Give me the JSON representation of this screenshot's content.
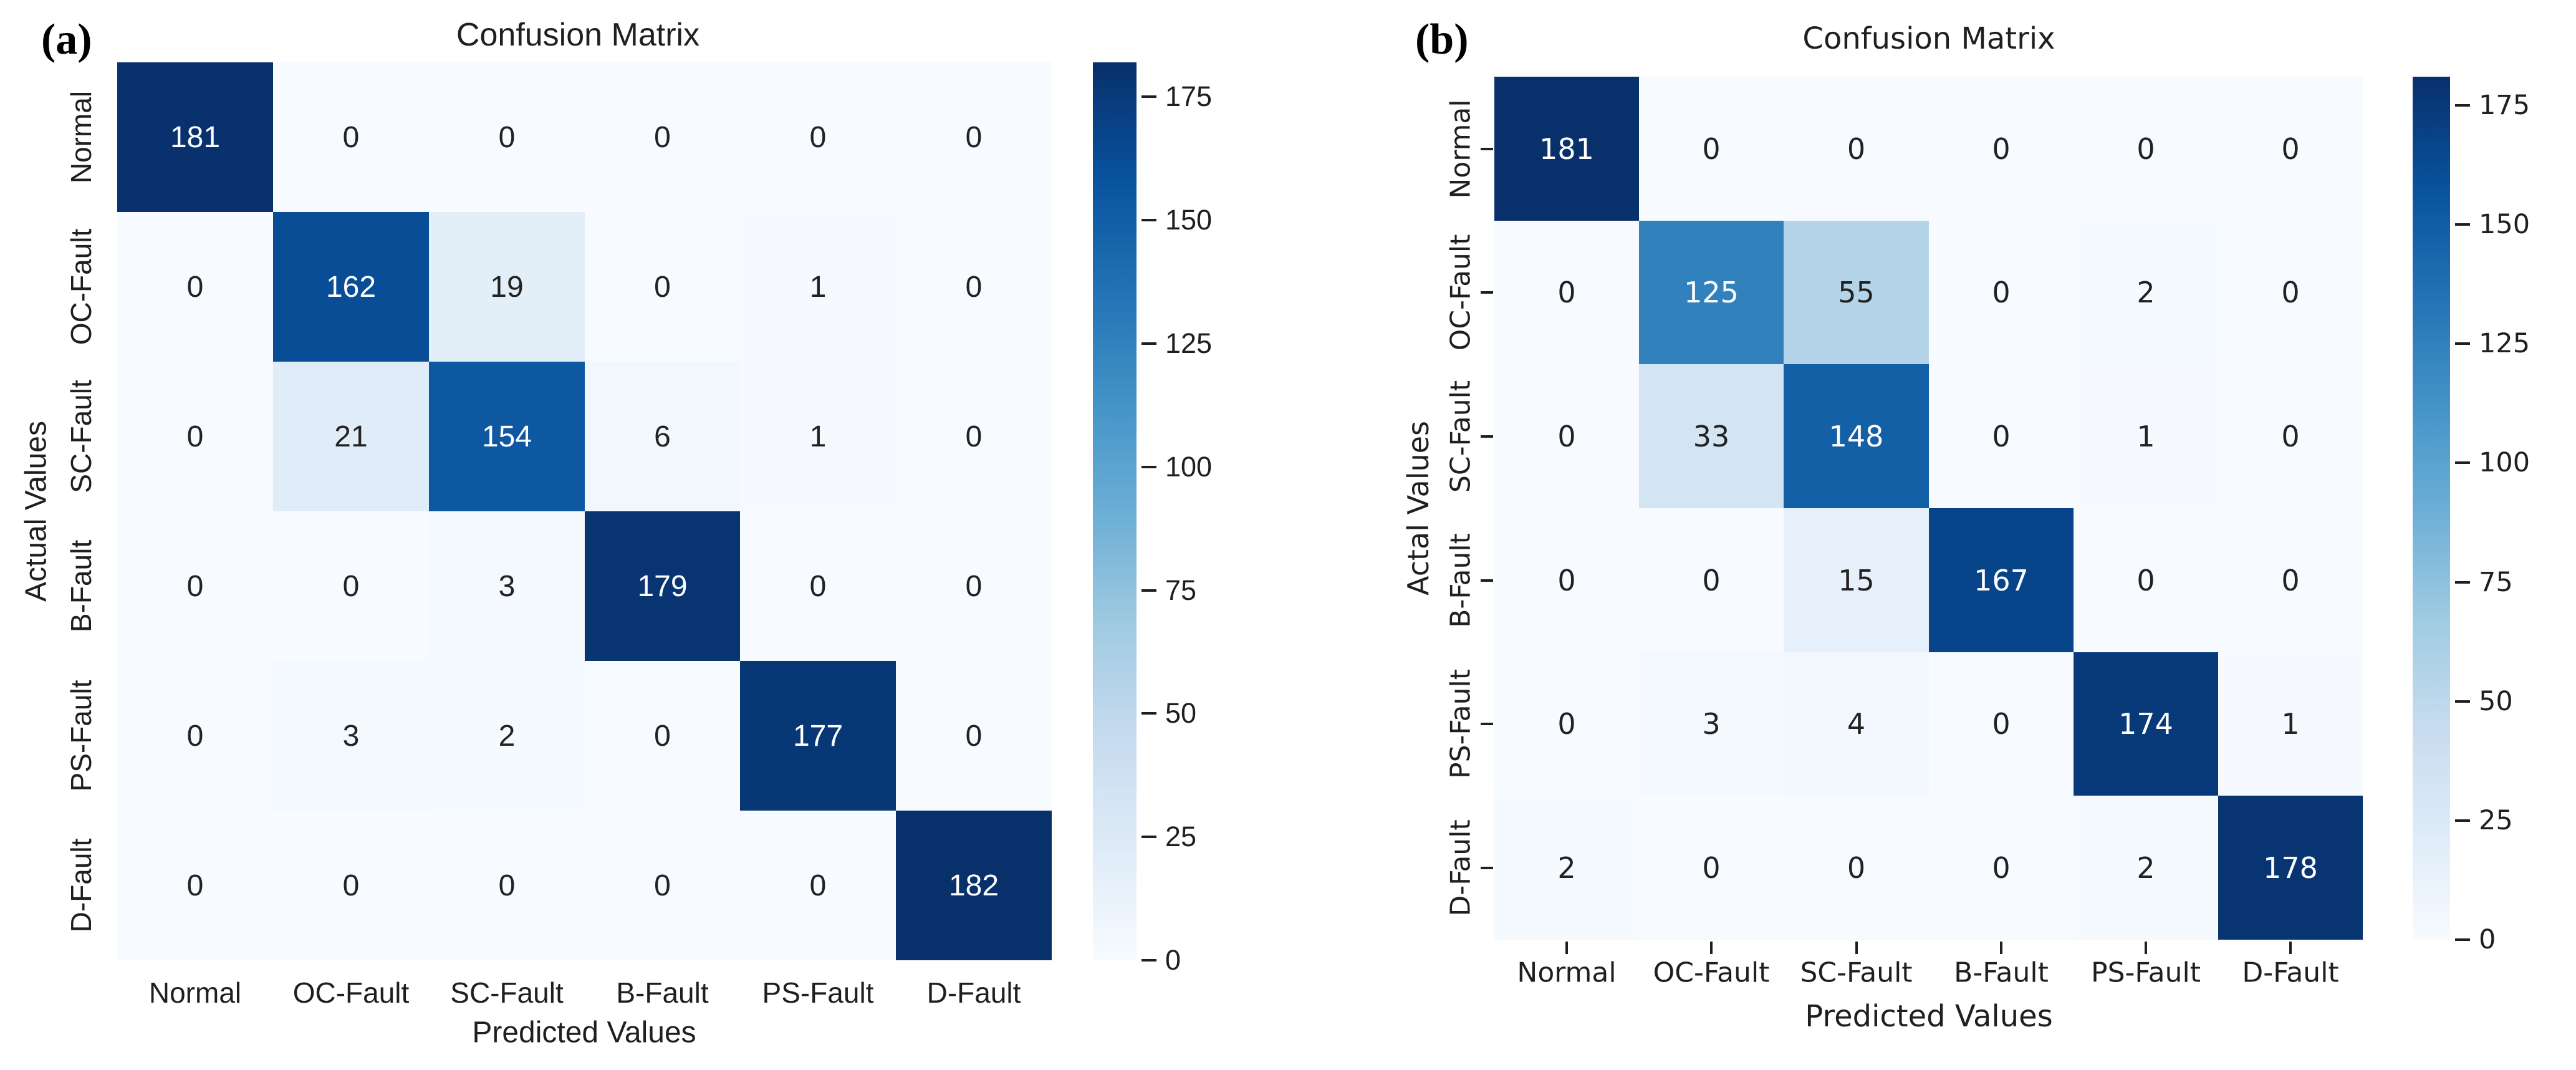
{
  "figure": {
    "background": "#ffffff",
    "panel_tags": [
      "(a)",
      "(b)"
    ]
  },
  "colors": {
    "colormap_stops": [
      "#f7fbff",
      "#deebf7",
      "#c6dbef",
      "#9ecae1",
      "#6baed6",
      "#4292c6",
      "#2171b5",
      "#08519c",
      "#08306b"
    ],
    "text_dark": "#1f1f1f",
    "cell_text_light": "#ffffff",
    "cell_text_dark": "#222222"
  },
  "chart_data": [
    {
      "type": "heatmap",
      "panel_tag": "(a)",
      "title": "Confusion Matrix",
      "xlabel": "Predicted Values",
      "ylabel": "Actual Values",
      "categories": [
        "Normal",
        "OC-Fault",
        "SC-Fault",
        "B-Fault",
        "PS-Fault",
        "D-Fault"
      ],
      "matrix": [
        [
          181,
          0,
          0,
          0,
          0,
          0
        ],
        [
          0,
          162,
          19,
          0,
          1,
          0
        ],
        [
          0,
          21,
          154,
          6,
          1,
          0
        ],
        [
          0,
          0,
          3,
          179,
          0,
          0
        ],
        [
          0,
          3,
          2,
          0,
          177,
          0
        ],
        [
          0,
          0,
          0,
          0,
          0,
          182
        ]
      ],
      "vmin": 0,
      "vmax": 182,
      "colormap": "Blues",
      "colorbar_ticks": [
        0,
        25,
        50,
        75,
        100,
        125,
        150,
        175
      ],
      "axis_ticks_visible": false,
      "grid": false,
      "legend_position": "colorbar-right"
    },
    {
      "type": "heatmap",
      "panel_tag": "(b)",
      "title": "Confusion Matrix",
      "xlabel": "Predicted Values",
      "ylabel": "Actal Values",
      "categories": [
        "Normal",
        "OC-Fault",
        "SC-Fault",
        "B-Fault",
        "PS-Fault",
        "D-Fault"
      ],
      "matrix": [
        [
          181,
          0,
          0,
          0,
          0,
          0
        ],
        [
          0,
          125,
          55,
          0,
          2,
          0
        ],
        [
          0,
          33,
          148,
          0,
          1,
          0
        ],
        [
          0,
          0,
          15,
          167,
          0,
          0
        ],
        [
          0,
          3,
          4,
          0,
          174,
          1
        ],
        [
          2,
          0,
          0,
          0,
          2,
          178
        ]
      ],
      "vmin": 0,
      "vmax": 181,
      "colormap": "Blues",
      "colorbar_ticks": [
        0,
        25,
        50,
        75,
        100,
        125,
        150,
        175
      ],
      "axis_ticks_visible": true,
      "grid": false,
      "legend_position": "colorbar-right"
    }
  ]
}
